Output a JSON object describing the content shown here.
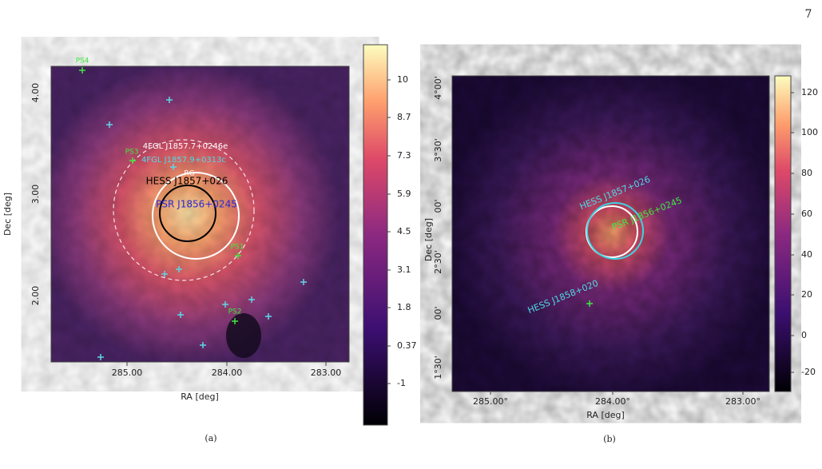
{
  "page_number": "7",
  "panels": [
    {
      "caption": "(a)",
      "x_label": "RA [deg]",
      "y_label": "Dec [deg]",
      "x_ticks": [
        "285.00",
        "284.00",
        "283.00"
      ],
      "y_ticks": [
        "4.00",
        "3.00",
        "2.00"
      ],
      "colorbar_ticks": [
        "10",
        "8.7",
        "7.3",
        "5.9",
        "4.5",
        "3.1",
        "1.8",
        "0.37",
        "-1"
      ],
      "annotations": [
        "PS4",
        "PS3",
        "4FGL J1857.7+0246e",
        "4FGL J1857.9+0313c",
        "RG",
        "HESS J1857+026",
        "PSR J1856+0245",
        "PS1",
        "PS2"
      ]
    },
    {
      "caption": "(b)",
      "x_label": "RA [deg]",
      "y_label": "Dec [deg]",
      "x_ticks": [
        "285.00°",
        "284.00°",
        "283.00°"
      ],
      "y_ticks": [
        "4°00'",
        "3°30'",
        "00'",
        "2°30'",
        "00'",
        "1°30'"
      ],
      "colorbar_ticks": [
        "120",
        "100",
        "80",
        "60",
        "40",
        "20",
        "0",
        "-20"
      ],
      "annotations": [
        "HESS J1857+026",
        "PSR J1856+0245",
        "HESS J1858+020"
      ]
    }
  ]
}
